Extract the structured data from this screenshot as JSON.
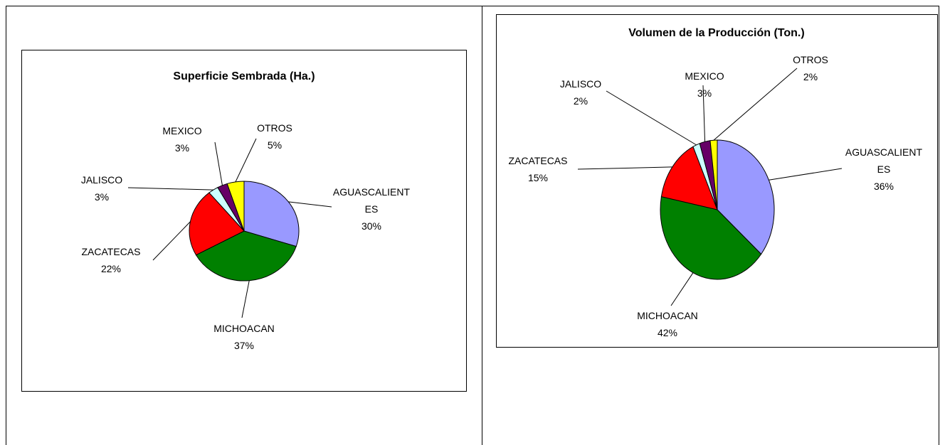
{
  "chart_data": [
    {
      "type": "pie",
      "title": "Superficie Sembrada (Ha.)",
      "categories": [
        "AGUASCALIENTES",
        "MICHOACAN",
        "ZACATECAS",
        "JALISCO",
        "MEXICO",
        "OTROS"
      ],
      "values": [
        30,
        37,
        22,
        3,
        3,
        5
      ],
      "value_labels": [
        "30%",
        "37%",
        "22%",
        "3%",
        "3%",
        "5%"
      ],
      "colors": [
        "#9999ff",
        "#008000",
        "#ff0000",
        "#ccffff",
        "#660066",
        "#ffff00"
      ]
    },
    {
      "type": "pie",
      "title": "Volumen de la Producción (Ton.)",
      "categories": [
        "AGUASCALIENTES",
        "MICHOACAN",
        "ZACATECAS",
        "JALISCO",
        "MEXICO",
        "OTROS"
      ],
      "values": [
        36,
        42,
        15,
        2,
        3,
        2
      ],
      "value_labels": [
        "36%",
        "42%",
        "15%",
        "2%",
        "3%",
        "2%"
      ],
      "colors": [
        "#9999ff",
        "#008000",
        "#ff0000",
        "#ccffff",
        "#660066",
        "#ffff00"
      ]
    }
  ]
}
